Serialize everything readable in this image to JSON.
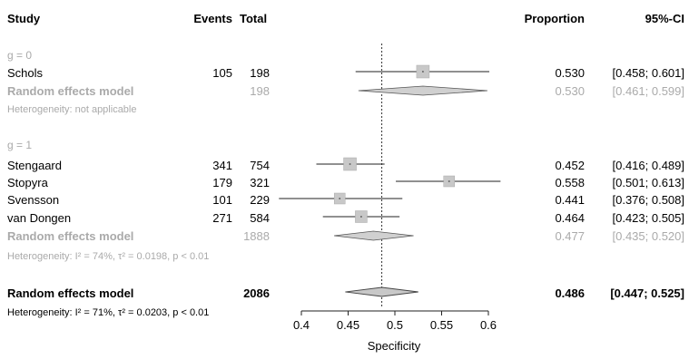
{
  "header": {
    "study": "Study",
    "events": "Events",
    "total": "Total",
    "proportion": "Proportion",
    "ci": "95%-CI"
  },
  "subgroups": [
    {
      "label": "g = 0",
      "studies": [
        {
          "name": "Schols",
          "events": "105",
          "total": "198",
          "prop": 0.53,
          "lo": 0.458,
          "hi": 0.601,
          "prop_text": "0.530",
          "ci_text": "[0.458; 0.601]"
        }
      ],
      "model": {
        "label": "Random effects model",
        "total": "198",
        "prop": 0.53,
        "lo": 0.461,
        "hi": 0.599,
        "prop_text": "0.530",
        "ci_text": "[0.461; 0.599]"
      },
      "heterogeneity": "Heterogeneity: not applicable"
    },
    {
      "label": "g = 1",
      "studies": [
        {
          "name": "Stengaard",
          "events": "341",
          "total": "754",
          "prop": 0.452,
          "lo": 0.416,
          "hi": 0.489,
          "prop_text": "0.452",
          "ci_text": "[0.416; 0.489]"
        },
        {
          "name": "Stopyra",
          "events": "179",
          "total": "321",
          "prop": 0.558,
          "lo": 0.501,
          "hi": 0.613,
          "prop_text": "0.558",
          "ci_text": "[0.501; 0.613]"
        },
        {
          "name": "Svensson",
          "events": "101",
          "total": "229",
          "prop": 0.441,
          "lo": 0.376,
          "hi": 0.508,
          "prop_text": "0.441",
          "ci_text": "[0.376; 0.508]"
        },
        {
          "name": "van Dongen",
          "events": "271",
          "total": "584",
          "prop": 0.464,
          "lo": 0.423,
          "hi": 0.505,
          "prop_text": "0.464",
          "ci_text": "[0.423; 0.505]"
        }
      ],
      "model": {
        "label": "Random effects model",
        "total": "1888",
        "prop": 0.477,
        "lo": 0.435,
        "hi": 0.52,
        "prop_text": "0.477",
        "ci_text": "[0.435; 0.520]"
      },
      "heterogeneity": "Heterogeneity: I² = 74%, τ² = 0.0198, p < 0.01"
    }
  ],
  "overall": {
    "label": "Random effects model",
    "total": "2086",
    "prop": 0.486,
    "lo": 0.447,
    "hi": 0.525,
    "prop_text": "0.486",
    "ci_text": "[0.447; 0.525]",
    "heterogeneity": "Heterogeneity: I² = 71%, τ² = 0.0203, p < 0.01"
  },
  "chart_data": {
    "type": "forest",
    "xlabel": "Specificity",
    "xlim": [
      0.4,
      0.6
    ],
    "ticks": [
      0.4,
      0.45,
      0.5,
      0.55,
      0.6
    ],
    "tick_labels": [
      "0.4",
      "0.45",
      "0.5",
      "0.55",
      "0.6"
    ],
    "reference_line": 0.486,
    "colors": {
      "study": "#222222",
      "subgroup": "#aaaaaa",
      "box": "#c8c8c8",
      "diamond_subgroup": "#d0d0d0",
      "diamond_overall": "#c8c8c8"
    }
  }
}
